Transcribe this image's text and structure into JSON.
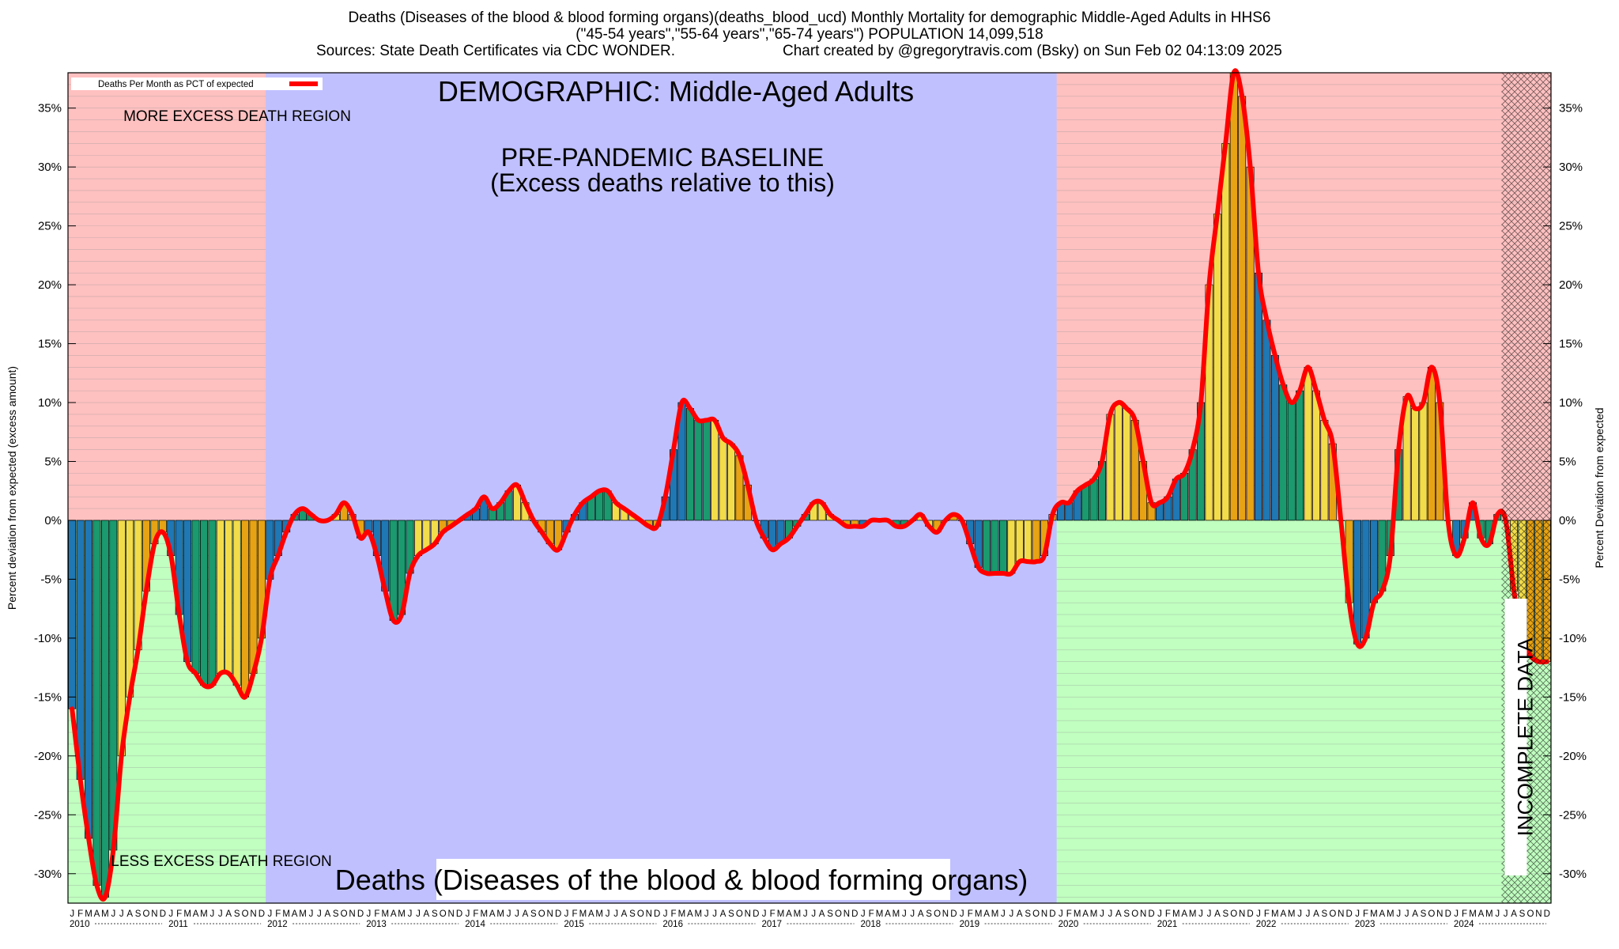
{
  "header": {
    "title_line1": "Deaths (Diseases of the blood & blood forming organs)(deaths_blood_ucd) Monthly Mortality for demographic Middle-Aged Adults in HHS6",
    "title_line2": "(\"45-54 years\",\"55-64 years\",\"65-74 years\") POPULATION 14,099,518",
    "title_line3_left": "Sources: State Death Certificates via CDC WONDER.",
    "title_line3_right": "Chart created by @gregorytravis.com (Bsky) on Sun Feb 02 04:13:09 2025"
  },
  "chart_data": {
    "type": "bar",
    "x_start": "2010-01",
    "x_end": "2024-12",
    "ylabel_left": "Percent deviation from expected (excess amount)",
    "ylabel_right": "Percent Deviation from expected",
    "ylim": [
      -32.5,
      38
    ],
    "yticks": [
      -30,
      -25,
      -20,
      -15,
      -10,
      -5,
      0,
      5,
      10,
      15,
      20,
      25,
      30,
      35
    ],
    "ytick_labels": [
      "-30%",
      "-25%",
      "-20%",
      "-15%",
      "-10%",
      "-5%",
      "0%",
      "5%",
      "10%",
      "15%",
      "20%",
      "25%",
      "30%",
      "35%"
    ],
    "month_initials": [
      "J",
      "F",
      "M",
      "A",
      "M",
      "J",
      "J",
      "A",
      "S",
      "O",
      "N",
      "D"
    ],
    "years": [
      "2010",
      "2011",
      "2012",
      "2013",
      "2014",
      "2015",
      "2016",
      "2017",
      "2018",
      "2019",
      "2020",
      "2021",
      "2022",
      "2023",
      "2024"
    ],
    "legend": {
      "label": "Deaths Per Month as PCT of expected",
      "position": "top-left",
      "line_color": "#ff0000"
    },
    "series": [
      {
        "name": "Deaths Per Month as PCT of expected",
        "values": [
          -16,
          -22,
          -27,
          -31,
          -32,
          -28,
          -20,
          -15,
          -11,
          -6,
          -2,
          -1,
          -3,
          -8,
          -12,
          -13,
          -14,
          -14,
          -13,
          -13,
          -14,
          -15,
          -13,
          -10,
          -5,
          -3,
          -1,
          0.5,
          1,
          0.5,
          0,
          0,
          0.5,
          1.5,
          0.5,
          -1.5,
          -1,
          -3,
          -6,
          -8.5,
          -8,
          -4.5,
          -3,
          -2.5,
          -2,
          -1,
          -0.5,
          0,
          0.5,
          1,
          2,
          1,
          1.5,
          2.5,
          3,
          1.5,
          0,
          -1,
          -2,
          -2.5,
          -1,
          0.5,
          1.5,
          2,
          2.5,
          2.5,
          1.5,
          1,
          0.5,
          0,
          -0.5,
          -0.5,
          2,
          6,
          10,
          9.5,
          8.5,
          8.5,
          8.5,
          7,
          6.5,
          5.5,
          3,
          0,
          -1.5,
          -2.5,
          -2,
          -1.5,
          -0.5,
          0.5,
          1.5,
          1.5,
          0.5,
          0,
          -0.5,
          -0.5,
          -0.5,
          0,
          0,
          0,
          -0.5,
          -0.5,
          0,
          0.5,
          -0.5,
          -1,
          0,
          0.5,
          0,
          -2,
          -4,
          -4.5,
          -4.5,
          -4.5,
          -4.5,
          -3.5,
          -3.5,
          -3.5,
          -3,
          0.5,
          1.5,
          1.5,
          2.5,
          3,
          3.5,
          5,
          9,
          10,
          9.5,
          8.5,
          5,
          1.5,
          1.5,
          2,
          3.5,
          4,
          6,
          10,
          20,
          26,
          32,
          38,
          36,
          30,
          21,
          17,
          14,
          11.5,
          10,
          11,
          13,
          11,
          8.5,
          6.5,
          0,
          -7,
          -10.5,
          -10,
          -7,
          -6,
          -3,
          6,
          10.5,
          9.5,
          10,
          13,
          10,
          0,
          -3,
          -1.5,
          1.5,
          -1.5,
          -2,
          0.5,
          0,
          -6,
          -10,
          -11.5,
          -12,
          -12
        ]
      }
    ],
    "bar_colors": [
      "#1f77b4",
      "#1a9a6e",
      "#f2dc4a",
      "#e7a314"
    ],
    "regions": [
      {
        "label": "MORE EXCESS DEATH REGION",
        "color": "#ffc0c0"
      },
      {
        "label": "LESS EXCESS DEATH REGION",
        "color": "#c0ffc0"
      },
      {
        "label": "PRE-PANDEMIC BASELINE",
        "color": "#c0c0ff",
        "from": "2012-01",
        "to": "2019-12"
      }
    ],
    "incomplete_from": "2024-07",
    "annotations": {
      "demographic": "DEMOGRAPHIC: Middle-Aged Adults",
      "baseline_line1": "PRE-PANDEMIC BASELINE",
      "baseline_line2": "(Excess deaths relative to this)",
      "more_region": "MORE EXCESS DEATH REGION",
      "less_region": "LESS EXCESS DEATH REGION",
      "bottom_title": "Deaths (Diseases of the blood & blood forming organs)",
      "incomplete": "INCOMPLETE DATA"
    }
  }
}
